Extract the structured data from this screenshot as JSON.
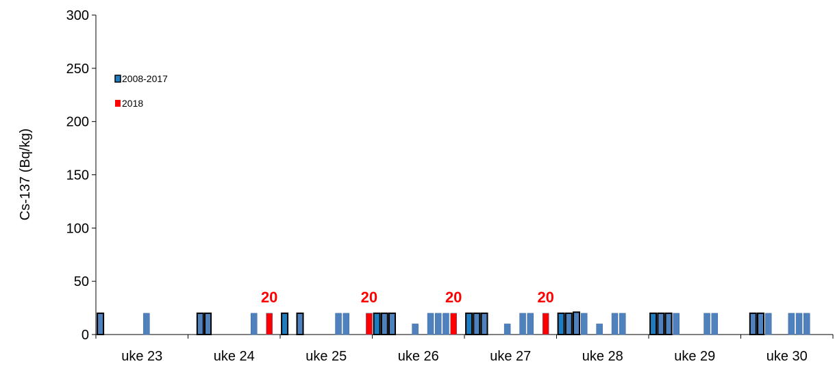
{
  "chart_data": {
    "type": "bar",
    "ylabel": "Cs-137 (Bq/kg)",
    "ylim": [
      0,
      300
    ],
    "yticks": [
      "0",
      "50",
      "100",
      "150",
      "200",
      "250",
      "300"
    ],
    "categories": [
      "uke 23",
      "uke 24",
      "uke 25",
      "uke 26",
      "uke 27",
      "uke 28",
      "uke 29",
      "uke 30"
    ],
    "bars_per_category": 12,
    "legend": [
      {
        "name": "2008-2017",
        "color": "#1f7dbf"
      },
      {
        "name": "2018",
        "color": "#ff0000"
      }
    ],
    "colors": {
      "historic": "#4f81bd",
      "historic_highlight": "#1f7dbf",
      "current": "#ff0000",
      "annotation": "#ff0000"
    },
    "bars": [
      {
        "category": "uke 23",
        "slot": 0,
        "value": 20,
        "series": "2008-2017",
        "outlined": true
      },
      {
        "category": "uke 23",
        "slot": 6,
        "value": 20,
        "series": "2008-2017",
        "outlined": false
      },
      {
        "category": "uke 24",
        "slot": 1,
        "value": 20,
        "series": "2008-2017",
        "outlined": true
      },
      {
        "category": "uke 24",
        "slot": 2,
        "value": 20,
        "series": "2008-2017",
        "outlined": true
      },
      {
        "category": "uke 24",
        "slot": 8,
        "value": 20,
        "series": "2008-2017",
        "outlined": false
      },
      {
        "category": "uke 24",
        "slot": 10,
        "value": 20,
        "series": "2018",
        "outlined": false
      },
      {
        "category": "uke 25",
        "slot": 0,
        "value": 20,
        "series": "2008-2017",
        "outlined": true,
        "highlight": true
      },
      {
        "category": "uke 25",
        "slot": 2,
        "value": 20,
        "series": "2008-2017",
        "outlined": true
      },
      {
        "category": "uke 25",
        "slot": 7,
        "value": 20,
        "series": "2008-2017",
        "outlined": false
      },
      {
        "category": "uke 25",
        "slot": 8,
        "value": 20,
        "series": "2008-2017",
        "outlined": false
      },
      {
        "category": "uke 25",
        "slot": 11,
        "value": 20,
        "series": "2018",
        "outlined": false
      },
      {
        "category": "uke 26",
        "slot": 0,
        "value": 20,
        "series": "2008-2017",
        "outlined": true,
        "highlight": true
      },
      {
        "category": "uke 26",
        "slot": 1,
        "value": 20,
        "series": "2008-2017",
        "outlined": true
      },
      {
        "category": "uke 26",
        "slot": 2,
        "value": 20,
        "series": "2008-2017",
        "outlined": true
      },
      {
        "category": "uke 26",
        "slot": 5,
        "value": 10,
        "series": "2008-2017",
        "outlined": false
      },
      {
        "category": "uke 26",
        "slot": 7,
        "value": 20,
        "series": "2008-2017",
        "outlined": false
      },
      {
        "category": "uke 26",
        "slot": 8,
        "value": 20,
        "series": "2008-2017",
        "outlined": false
      },
      {
        "category": "uke 26",
        "slot": 9,
        "value": 20,
        "series": "2008-2017",
        "outlined": false
      },
      {
        "category": "uke 26",
        "slot": 10,
        "value": 20,
        "series": "2018",
        "outlined": false
      },
      {
        "category": "uke 27",
        "slot": 0,
        "value": 20,
        "series": "2008-2017",
        "outlined": true,
        "highlight": true
      },
      {
        "category": "uke 27",
        "slot": 1,
        "value": 20,
        "series": "2008-2017",
        "outlined": true
      },
      {
        "category": "uke 27",
        "slot": 2,
        "value": 20,
        "series": "2008-2017",
        "outlined": true
      },
      {
        "category": "uke 27",
        "slot": 5,
        "value": 10,
        "series": "2008-2017",
        "outlined": false
      },
      {
        "category": "uke 27",
        "slot": 7,
        "value": 20,
        "series": "2008-2017",
        "outlined": false
      },
      {
        "category": "uke 27",
        "slot": 8,
        "value": 20,
        "series": "2008-2017",
        "outlined": false
      },
      {
        "category": "uke 27",
        "slot": 10,
        "value": 20,
        "series": "2018",
        "outlined": false
      },
      {
        "category": "uke 28",
        "slot": 0,
        "value": 20,
        "series": "2008-2017",
        "outlined": true,
        "highlight": true
      },
      {
        "category": "uke 28",
        "slot": 1,
        "value": 20,
        "series": "2008-2017",
        "outlined": true
      },
      {
        "category": "uke 28",
        "slot": 2,
        "value": 21,
        "series": "2008-2017",
        "outlined": true
      },
      {
        "category": "uke 28",
        "slot": 3,
        "value": 20,
        "series": "2008-2017",
        "outlined": false
      },
      {
        "category": "uke 28",
        "slot": 5,
        "value": 10,
        "series": "2008-2017",
        "outlined": false
      },
      {
        "category": "uke 28",
        "slot": 7,
        "value": 20,
        "series": "2008-2017",
        "outlined": false
      },
      {
        "category": "uke 28",
        "slot": 8,
        "value": 20,
        "series": "2008-2017",
        "outlined": false
      },
      {
        "category": "uke 29",
        "slot": 0,
        "value": 20,
        "series": "2008-2017",
        "outlined": true,
        "highlight": true
      },
      {
        "category": "uke 29",
        "slot": 1,
        "value": 20,
        "series": "2008-2017",
        "outlined": true
      },
      {
        "category": "uke 29",
        "slot": 2,
        "value": 20,
        "series": "2008-2017",
        "outlined": true
      },
      {
        "category": "uke 29",
        "slot": 3,
        "value": 20,
        "series": "2008-2017",
        "outlined": false
      },
      {
        "category": "uke 29",
        "slot": 7,
        "value": 20,
        "series": "2008-2017",
        "outlined": false
      },
      {
        "category": "uke 29",
        "slot": 8,
        "value": 20,
        "series": "2008-2017",
        "outlined": false
      },
      {
        "category": "uke 30",
        "slot": 1,
        "value": 20,
        "series": "2008-2017",
        "outlined": true
      },
      {
        "category": "uke 30",
        "slot": 2,
        "value": 20,
        "series": "2008-2017",
        "outlined": true
      },
      {
        "category": "uke 30",
        "slot": 3,
        "value": 20,
        "series": "2008-2017",
        "outlined": false
      },
      {
        "category": "uke 30",
        "slot": 6,
        "value": 20,
        "series": "2008-2017",
        "outlined": false
      },
      {
        "category": "uke 30",
        "slot": 7,
        "value": 20,
        "series": "2008-2017",
        "outlined": false
      },
      {
        "category": "uke 30",
        "slot": 8,
        "value": 20,
        "series": "2008-2017",
        "outlined": false
      }
    ],
    "annotations": [
      {
        "text": "20",
        "category": "uke 24",
        "slot": 10,
        "value": 20
      },
      {
        "text": "20",
        "category": "uke 25",
        "slot": 11,
        "value": 20
      },
      {
        "text": "20",
        "category": "uke 26",
        "slot": 10,
        "value": 20
      },
      {
        "text": "20",
        "category": "uke 27",
        "slot": 10,
        "value": 20
      }
    ],
    "grid": false,
    "legend_position": "top-left"
  }
}
